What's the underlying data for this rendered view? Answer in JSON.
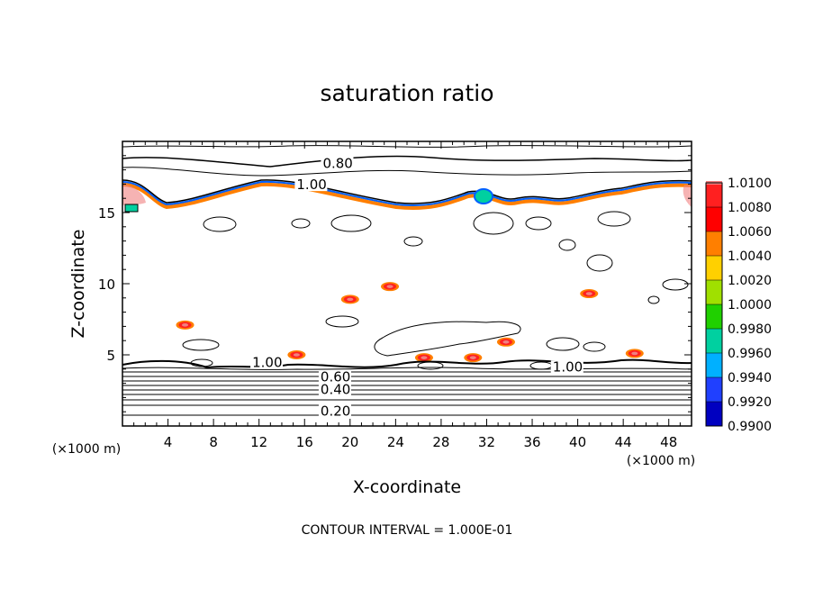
{
  "chart_data": {
    "type": "contour",
    "title": "saturation ratio",
    "xlabel": "X-coordinate",
    "ylabel": "Z-coordinate",
    "x_unit": "(×1000 m)",
    "y_unit": "(×1000 m)",
    "xlim": [
      0,
      50
    ],
    "ylim": [
      0,
      20
    ],
    "x_ticks": [
      4,
      8,
      12,
      16,
      20,
      24,
      28,
      32,
      36,
      40,
      44,
      48
    ],
    "y_ticks": [
      5,
      10,
      15
    ],
    "footer": "CONTOUR INTERVAL = 1.000E-01",
    "colorbar": {
      "levels": [
        "1.0100",
        "1.0080",
        "1.0060",
        "1.0040",
        "1.0020",
        "1.0000",
        "0.9980",
        "0.9960",
        "0.9940",
        "0.9920",
        "0.9900"
      ],
      "colors": [
        "#f08080",
        "#ff2020",
        "#ff0000",
        "#ff7f00",
        "#ffd000",
        "#a0e000",
        "#20d000",
        "#00d0a0",
        "#00b0ff",
        "#2040ff",
        "#0000c0",
        "#5000a0"
      ]
    },
    "contour_labels": [
      {
        "text": "0.80",
        "x": 17.6,
        "z": 18.2
      },
      {
        "text": "1.00",
        "x": 15.3,
        "z": 16.7
      },
      {
        "text": "1.00",
        "x": 11.4,
        "z": 4.2
      },
      {
        "text": "1.00",
        "x": 37.8,
        "z": 3.9
      },
      {
        "text": "0.60",
        "x": 17.4,
        "z": 3.2
      },
      {
        "text": "0.40",
        "x": 17.4,
        "z": 2.3
      },
      {
        "text": "0.20",
        "x": 17.4,
        "z": 0.8
      }
    ],
    "moist_patches": [
      {
        "x": 20.0,
        "z": 8.9
      },
      {
        "x": 23.5,
        "z": 9.8
      },
      {
        "x": 41.0,
        "z": 9.3
      },
      {
        "x": 5.5,
        "z": 7.1
      },
      {
        "x": 15.3,
        "z": 5.0
      },
      {
        "x": 33.7,
        "z": 5.9
      },
      {
        "x": 26.5,
        "z": 4.8
      },
      {
        "x": 30.8,
        "z": 4.8
      },
      {
        "x": 45.0,
        "z": 5.1
      }
    ]
  }
}
